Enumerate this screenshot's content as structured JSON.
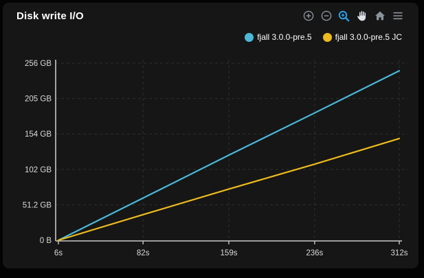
{
  "panel": {
    "title": "Disk write I/O"
  },
  "toolbar": {
    "buttons": [
      {
        "name": "zoom-in",
        "active": false
      },
      {
        "name": "zoom-out",
        "active": false
      },
      {
        "name": "box-zoom",
        "active": true
      },
      {
        "name": "pan",
        "active": false
      },
      {
        "name": "reset-view",
        "active": false
      },
      {
        "name": "menu",
        "active": false
      }
    ]
  },
  "legend": {
    "items": [
      {
        "label": "fjall 3.0.0-pre.5",
        "color": "#4bb8d8"
      },
      {
        "label": "fjall 3.0.0-pre.5 JC",
        "color": "#eebb1d"
      }
    ]
  },
  "chart_data": {
    "type": "line",
    "title": "Disk write I/O",
    "x": [
      6,
      82,
      159,
      236,
      312
    ],
    "series": [
      {
        "name": "fjall 3.0.0-pre.5",
        "color": "#4bb8d8",
        "values": [
          0,
          61,
          123,
          184,
          245
        ]
      },
      {
        "name": "fjall 3.0.0-pre.5 JC",
        "color": "#eebb1d",
        "values": [
          0,
          37,
          74,
          110,
          147
        ]
      }
    ],
    "xlabel": "",
    "ylabel": "",
    "xlim": [
      6,
      312
    ],
    "ylim": [
      0,
      256
    ],
    "xticks": {
      "values": [
        6,
        82,
        159,
        236,
        312
      ],
      "labels": [
        "6s",
        "82s",
        "159s",
        "236s",
        "312s"
      ]
    },
    "yticks": {
      "values": [
        0,
        51.2,
        102.4,
        153.6,
        204.8,
        256
      ],
      "labels": [
        "0 B",
        "51.2 GB",
        "102 GB",
        "154 GB",
        "205 GB",
        "256 GB"
      ]
    },
    "grid": "dashed",
    "legend_position": "top-right",
    "unit": "bytes"
  },
  "colors": {
    "outer_bg": "#040404",
    "panel_bg": "#161616",
    "grid": "#2f2f2f",
    "axis": "#c9c9c9",
    "tick_text": "#d9d9d9",
    "title_text": "#ffffff",
    "icon_gray": "#8d939c",
    "icon_light": "#dde2e8",
    "accent_blue": "#2b9fe8"
  }
}
